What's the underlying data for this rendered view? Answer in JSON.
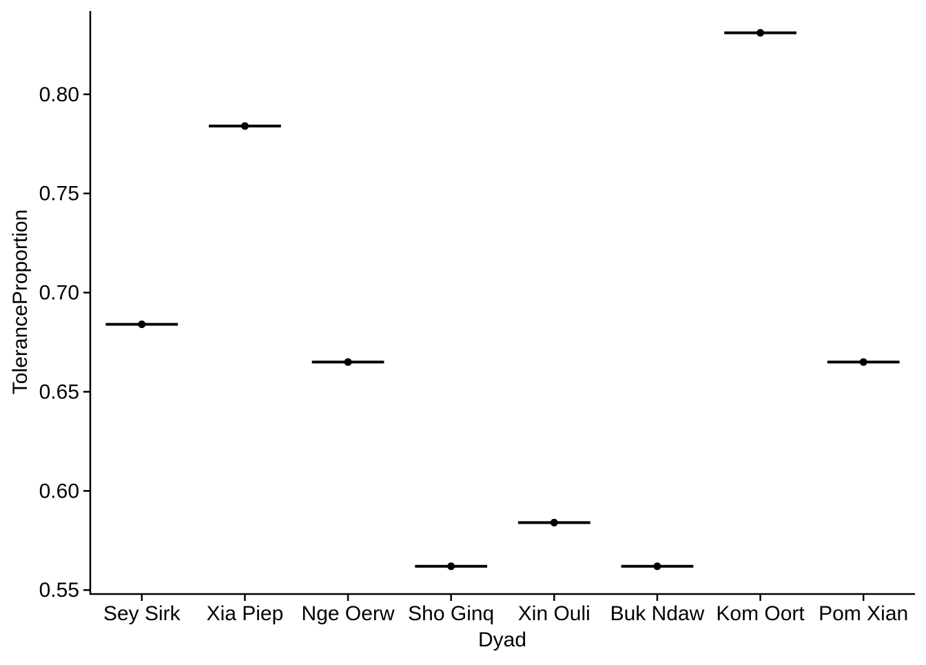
{
  "chart_data": {
    "type": "scatter",
    "title": "",
    "xlabel": "Dyad",
    "ylabel": "ToleranceProportion",
    "categories": [
      "Sey Sirk",
      "Xia Piep",
      "Nge Oerw",
      "Sho Ginq",
      "Xin Ouli",
      "Buk Ndaw",
      "Kom Oort",
      "Pom Xian"
    ],
    "values": [
      0.684,
      0.784,
      0.665,
      0.562,
      0.584,
      0.562,
      0.831,
      0.665
    ],
    "mean_markers": "horizontal-bar",
    "ylim": [
      0.548,
      0.842
    ],
    "yticks": [
      0.55,
      0.6,
      0.65,
      0.7,
      0.75,
      0.8
    ],
    "ytick_labels": [
      "0.55",
      "0.60",
      "0.65",
      "0.70",
      "0.75",
      "0.80"
    ],
    "grid": false,
    "legend": "none",
    "colors": {
      "mark": "#000000",
      "axis": "#000000"
    }
  }
}
